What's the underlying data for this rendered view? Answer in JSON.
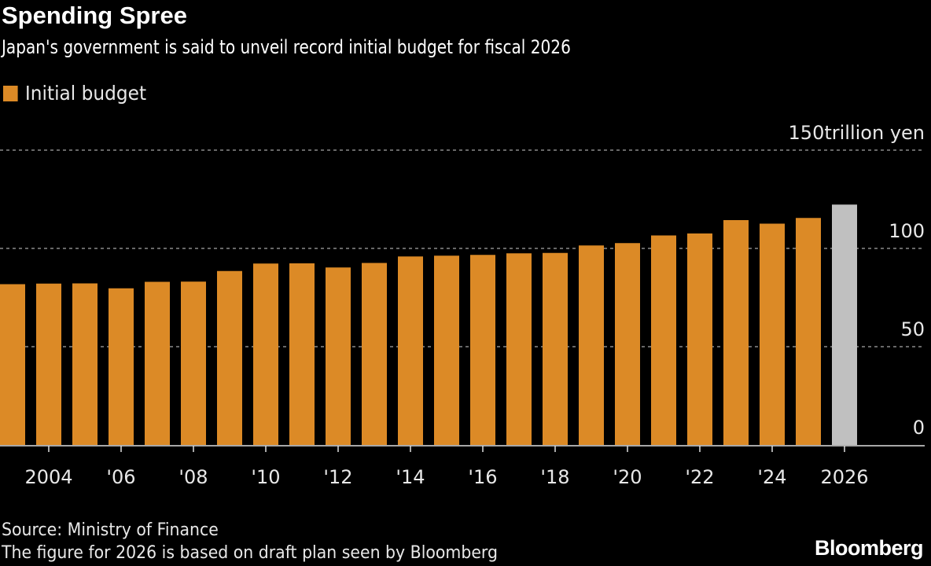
{
  "title": "Spending Spree",
  "subtitle": "Japan's government is said to unveil record initial budget for fiscal 2026",
  "legend": {
    "label": "Initial budget",
    "color": "#dc8a26"
  },
  "source": "Source: Ministry of Finance",
  "note": "The figure for 2026 is based on draft plan seen by Bloomberg",
  "logo": "Bloomberg",
  "chart_data": {
    "type": "bar",
    "categories": [
      2003,
      2004,
      2005,
      2006,
      2007,
      2008,
      2009,
      2010,
      2011,
      2012,
      2013,
      2014,
      2015,
      2016,
      2017,
      2018,
      2019,
      2020,
      2021,
      2022,
      2023,
      2024,
      2025,
      2026
    ],
    "series": [
      {
        "name": "Initial budget",
        "values": [
          81.8,
          82.1,
          82.2,
          79.7,
          83.0,
          83.1,
          88.5,
          92.3,
          92.4,
          90.3,
          92.6,
          95.9,
          96.3,
          96.7,
          97.5,
          97.7,
          101.5,
          102.7,
          106.6,
          107.6,
          114.4,
          112.6,
          115.5,
          122.3
        ]
      }
    ],
    "highlight": {
      "category": 2026,
      "color": "#c0c0c0"
    },
    "ylim": [
      0,
      150
    ],
    "yticks": [
      0,
      50,
      100,
      150
    ],
    "ytick_labels": [
      "0",
      "50",
      "100",
      "150trillion yen"
    ],
    "xtick_labels": [
      {
        "year": 2004,
        "label": "2004"
      },
      {
        "year": 2006,
        "label": "'06"
      },
      {
        "year": 2008,
        "label": "'08"
      },
      {
        "year": 2010,
        "label": "'10"
      },
      {
        "year": 2012,
        "label": "'12"
      },
      {
        "year": 2014,
        "label": "'14"
      },
      {
        "year": 2016,
        "label": "'16"
      },
      {
        "year": 2018,
        "label": "'18"
      },
      {
        "year": 2020,
        "label": "'20"
      },
      {
        "year": 2022,
        "label": "'22"
      },
      {
        "year": 2024,
        "label": "'24"
      },
      {
        "year": 2026,
        "label": "2026"
      }
    ],
    "grid": true,
    "legend_position": "top-left",
    "axis_position": "right"
  }
}
